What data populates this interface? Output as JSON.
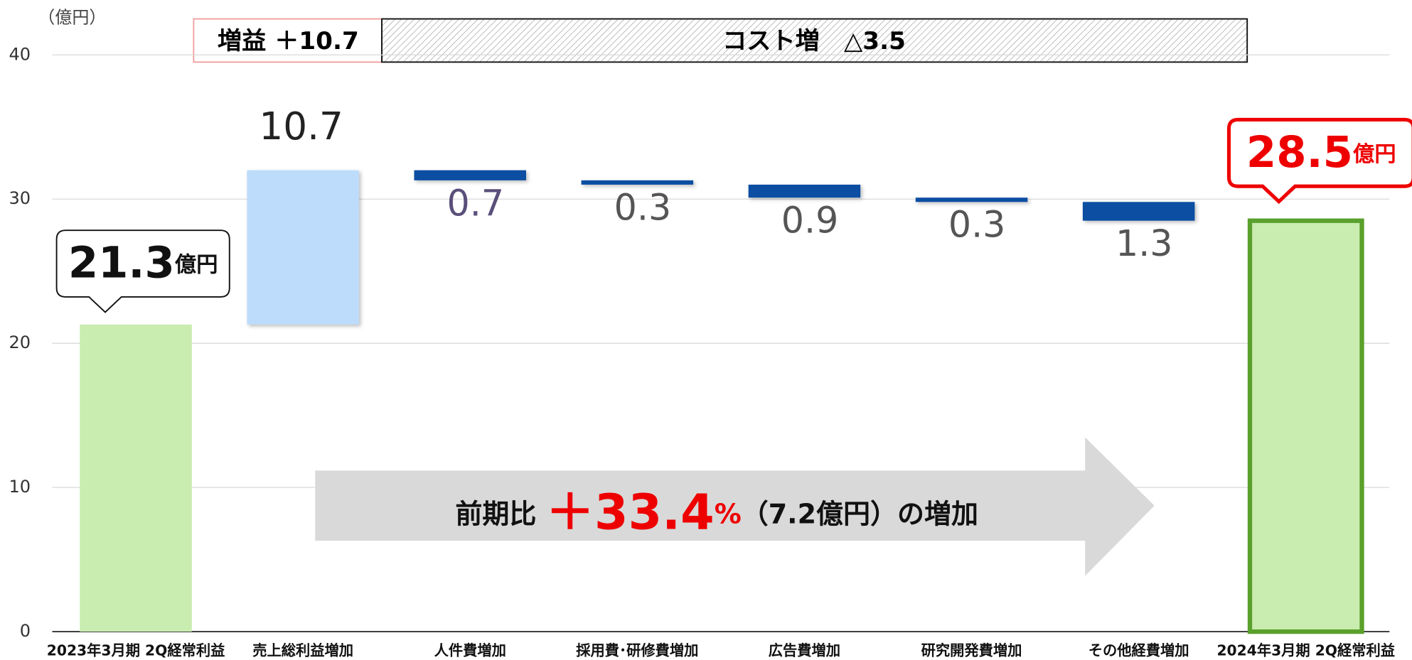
{
  "chart_data": {
    "type": "waterfall",
    "y_axis_label": "（億円）",
    "categories": [
      "2023年3月期 2Q経常利益",
      "売上総利益増加",
      "人件費増加",
      "採用費･研修費増加",
      "広告費増加",
      "研究開発費増加",
      "その他経費増加",
      "2024年3月期 2Q経常利益"
    ],
    "values": [
      21.3,
      10.7,
      -0.7,
      -0.3,
      -0.9,
      -0.3,
      -1.3,
      28.5
    ],
    "value_labels": [
      "21.3",
      "10.7",
      "0.7",
      "0.3",
      "0.9",
      "0.3",
      "1.3",
      "28.5"
    ],
    "value_label_unit": "億円",
    "measures": [
      "total",
      "increase",
      "decrease",
      "decrease",
      "decrease",
      "decrease",
      "decrease",
      "total"
    ],
    "colors": {
      "total": "#c9ecb0",
      "increase": "#bddcfb",
      "decrease": "#0b4ea2",
      "final_border": "#5aa02c"
    },
    "ylim": [
      0,
      40
    ],
    "yticks": [
      0,
      10,
      20,
      30,
      40
    ],
    "grid": true,
    "annotations": {
      "gain": "増益 ＋10.7",
      "cost": "コスト増　△3.5",
      "arrow": {
        "prefix": "前期比 ",
        "rate": "＋33.4",
        "rate_unit": "%",
        "suffix": "（7.2億円）の増加"
      }
    }
  }
}
